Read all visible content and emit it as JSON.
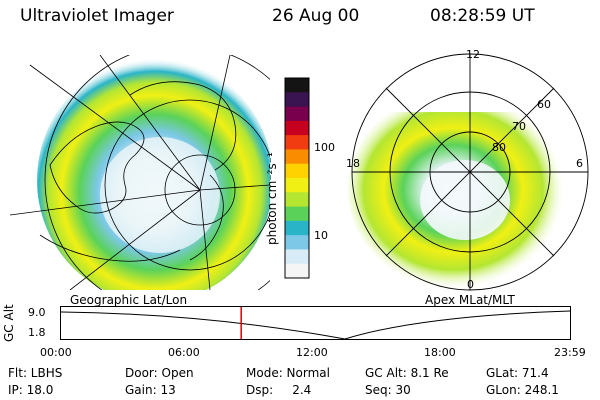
{
  "header": {
    "instrument": "Ultraviolet Imager",
    "date": "26 Aug 00",
    "time": "08:28:59 UT"
  },
  "left_panel": {
    "caption": "Geographic Lat/Lon"
  },
  "right_panel": {
    "caption": "Apex MLat/MLT",
    "mlt_labels": [
      "12",
      "18",
      "6",
      "0"
    ],
    "mlat_labels": [
      "60",
      "70",
      "80"
    ]
  },
  "colorbar": {
    "unit_label": "photon cm⁻²s⁻¹",
    "ticks": [
      "100",
      "10"
    ],
    "colors": [
      "#141414",
      "#3a1450",
      "#78004c",
      "#c80020",
      "#f03c10",
      "#fa8c00",
      "#ffd200",
      "#f0f014",
      "#b4e632",
      "#5ad25a",
      "#2ab4c8",
      "#7cc8e6",
      "#d7ecf6",
      "#f5f5f5"
    ]
  },
  "altitude_plot": {
    "ylabel": "GC Alt",
    "yticks": [
      "9.0",
      "1.8"
    ],
    "xticks": [
      "00:00",
      "06:00",
      "12:00",
      "18:00",
      "23:59"
    ],
    "current_time_fraction": 0.354
  },
  "info": {
    "row1": [
      "Flt: LBHS",
      "Door: Open",
      "Mode: Normal",
      "GC Alt: 8.1 Re",
      "GLat: 71.4"
    ],
    "row2": [
      "IP: 18.0",
      "Gain: 13",
      "Dsp:     2.4",
      "Seq: 30",
      "GLon: 248.1"
    ]
  }
}
